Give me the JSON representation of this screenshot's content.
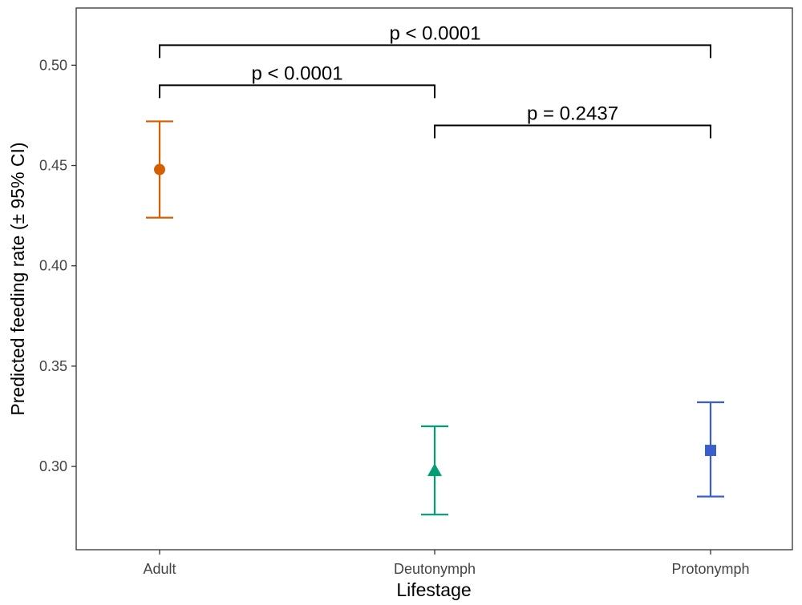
{
  "chart_data": {
    "type": "scatter",
    "xlabel": "Lifestage",
    "ylabel": "Predicted feeding rate (± 95% CI)",
    "categories": [
      "Adult",
      "Deutonymph",
      "Protonymph"
    ],
    "ylim": [
      0.2585,
      0.5285
    ],
    "yticks": [
      0.3,
      0.35,
      0.4,
      0.45,
      0.5
    ],
    "ytick_labels": [
      "0.30",
      "0.35",
      "0.40",
      "0.45",
      "0.50"
    ],
    "grid": false,
    "points": [
      {
        "category": "Adult",
        "value": 0.448,
        "ci_low": 0.424,
        "ci_high": 0.472,
        "color": "#D55E00",
        "shape": "circle"
      },
      {
        "category": "Deutonymph",
        "value": 0.298,
        "ci_low": 0.276,
        "ci_high": 0.32,
        "color": "#009E73",
        "shape": "triangle"
      },
      {
        "category": "Protonymph",
        "value": 0.308,
        "ci_low": 0.285,
        "ci_high": 0.332,
        "color": "#3A5FCD",
        "shape": "square"
      }
    ],
    "comparisons": [
      {
        "from": "Adult",
        "to": "Protonymph",
        "label": "p < 0.0001",
        "y": 0.51
      },
      {
        "from": "Adult",
        "to": "Deutonymph",
        "label": "p < 0.0001",
        "y": 0.49
      },
      {
        "from": "Deutonymph",
        "to": "Protonymph",
        "label": "p = 0.2437",
        "y": 0.47
      }
    ]
  }
}
